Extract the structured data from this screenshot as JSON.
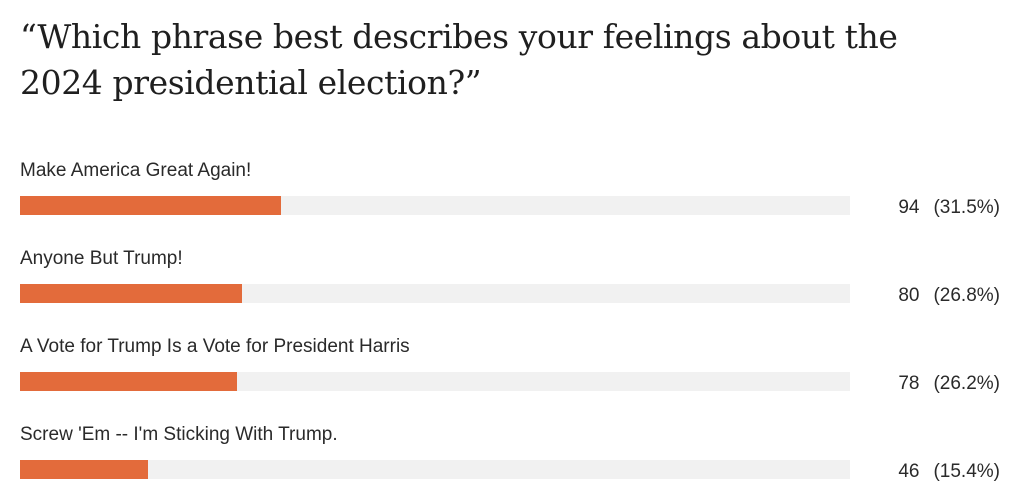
{
  "poll": {
    "question": "“Which phrase best describes your feelings about the 2024 presidential election?”",
    "accent_color": "#e36b3b",
    "track_color": "#f1f1f1",
    "options": [
      {
        "label": "Make America Great Again!",
        "count": "94",
        "percent_text": "(31.5%)",
        "fill_fraction": 0.315
      },
      {
        "label": "Anyone But Trump!",
        "count": "80",
        "percent_text": "(26.8%)",
        "fill_fraction": 0.268
      },
      {
        "label": "A Vote for Trump Is a Vote for President Harris",
        "count": "78",
        "percent_text": "(26.2%)",
        "fill_fraction": 0.262
      },
      {
        "label": "Screw 'Em -- I'm Sticking With Trump.",
        "count": "46",
        "percent_text": "(15.4%)",
        "fill_fraction": 0.154
      }
    ]
  }
}
